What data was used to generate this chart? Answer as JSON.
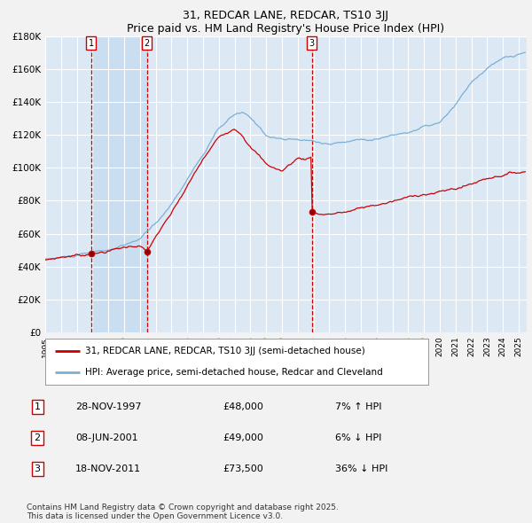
{
  "title1": "31, REDCAR LANE, REDCAR, TS10 3JJ",
  "title2": "Price paid vs. HM Land Registry's House Price Index (HPI)",
  "ylim": [
    0,
    180000
  ],
  "yticks": [
    0,
    20000,
    40000,
    60000,
    80000,
    100000,
    120000,
    140000,
    160000,
    180000
  ],
  "ytick_labels": [
    "£0",
    "£20K",
    "£40K",
    "£60K",
    "£80K",
    "£100K",
    "£120K",
    "£140K",
    "£160K",
    "£180K"
  ],
  "xmin": 1995.0,
  "xmax": 2025.5,
  "bg_color": "#dce9f5",
  "fig_bg": "#f2f2f2",
  "grid_color": "#ffffff",
  "red_line_color": "#cc0000",
  "blue_line_color": "#7bafd4",
  "vline_color": "#cc0000",
  "transactions": [
    {
      "label": "1",
      "date_x": 1997.91,
      "price": 48000,
      "date_str": "28-NOV-1997",
      "price_str": "£48,000",
      "hpi_str": "7% ↑ HPI"
    },
    {
      "label": "2",
      "date_x": 2001.44,
      "price": 49000,
      "date_str": "08-JUN-2001",
      "price_str": "£49,000",
      "hpi_str": "6% ↓ HPI"
    },
    {
      "label": "3",
      "date_x": 2011.89,
      "price": 73500,
      "date_str": "18-NOV-2011",
      "price_str": "£73,500",
      "hpi_str": "36% ↓ HPI"
    }
  ],
  "legend_line1": "31, REDCAR LANE, REDCAR, TS10 3JJ (semi-detached house)",
  "legend_line2": "HPI: Average price, semi-detached house, Redcar and Cleveland",
  "footer": "Contains HM Land Registry data © Crown copyright and database right 2025.\nThis data is licensed under the Open Government Licence v3.0."
}
